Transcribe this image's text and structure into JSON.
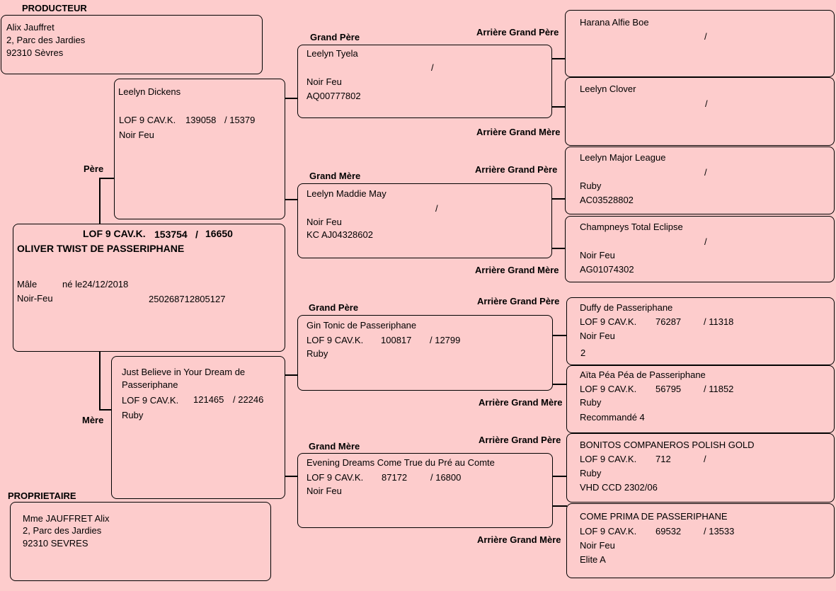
{
  "producer": {
    "header": "PRODUCTEUR",
    "name": "Alix Jauffret",
    "addr1": "2, Parc des Jardies",
    "addr2": "92310 Sèvres"
  },
  "owner": {
    "header": "PROPRIETAIRE",
    "name": "Mme JAUFFRET Alix",
    "addr1": "2, Parc des Jardies",
    "addr2": "92310 SEVRES"
  },
  "labels": {
    "pere": "Père",
    "mere": "Mère",
    "grand_pere": "Grand Père",
    "grand_mere": "Grand Mère",
    "ag_pere": "Arrière Grand Père",
    "ag_mere": "Arrière Grand Mère"
  },
  "subject": {
    "reg": "LOF 9 CAV.K.",
    "num": "153754",
    "sep": "/",
    "num2": "16650",
    "name": "OLIVER TWIST DE PASSERIPHANE",
    "sex": "Mâle",
    "born": "né le24/12/2018",
    "color": "Noir-Feu",
    "chip": "250268712805127"
  },
  "father": {
    "name": "Leelyn Dickens",
    "reg": "LOF 9 CAV.K.",
    "num": "139058",
    "num2": "/ 15379",
    "color": "Noir Feu"
  },
  "mother": {
    "name1": "Just Believe in Your Dream de",
    "name2": "Passeriphane",
    "reg": "LOF 9 CAV.K.",
    "num": "121465",
    "num2": "/ 22246",
    "color": "Ruby"
  },
  "gp1": {
    "name": "Leelyn Tyela",
    "sep": "/",
    "color": "Noir Feu",
    "id": "AQ00777802"
  },
  "gm1": {
    "name": "Leelyn Maddie May",
    "sep": "/",
    "color": "Noir Feu",
    "id": "KC AJ04328602"
  },
  "gp2": {
    "name": "Gin Tonic de Passeriphane",
    "reg": "LOF 9 CAV.K.",
    "num": "100817",
    "num2": "/ 12799",
    "color": "Ruby"
  },
  "gm2": {
    "name": "Evening Dreams Come True du Pré au Comte",
    "reg": "LOF 9 CAV.K.",
    "num": "87172",
    "num2": "/ 16800",
    "color": "Noir Feu"
  },
  "ag": [
    {
      "name": "Harana Alfie Boe",
      "sep": "/"
    },
    {
      "name": "Leelyn Clover",
      "sep": "/"
    },
    {
      "name": "Leelyn Major League",
      "sep": "/",
      "color": "Ruby",
      "id": "AC03528802"
    },
    {
      "name": "Champneys Total Eclipse",
      "sep": "/",
      "color": "Noir Feu",
      "id": "AG01074302"
    },
    {
      "name": "Duffy de Passeriphane",
      "reg": "LOF 9 CAV.K.",
      "num": "76287",
      "num2": "/ 11318",
      "color": "Noir Feu",
      "extra": "2"
    },
    {
      "name": "Aïta Péa Péa de Passeriphane",
      "reg": "LOF 9 CAV.K.",
      "num": "56795",
      "num2": "/ 11852",
      "color": "Ruby",
      "extra": "Recommandé 4"
    },
    {
      "name": "BONITOS COMPANEROS POLISH GOLD",
      "reg": "LOF 9 CAV.K.",
      "num": "712",
      "num2": "/",
      "color": "Ruby",
      "extra": "VHD CCD 2302/06"
    },
    {
      "name": "COME PRIMA DE PASSERIPHANE",
      "reg": "LOF 9 CAV.K.",
      "num": "69532",
      "num2": "/ 13533",
      "color": "Noir Feu",
      "extra": "Elite A"
    }
  ]
}
